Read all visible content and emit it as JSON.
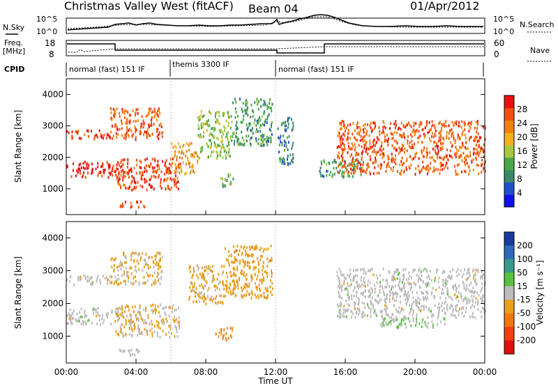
{
  "header": {
    "title": "Christmas Valley West (fitACF)",
    "beam": "Beam 04",
    "date": "01/Apr/2012"
  },
  "noise_panel": {
    "left_label": "N.Sky",
    "left_ticks": [
      "10^5",
      "10^0"
    ],
    "right_label": "N.Search",
    "right_ticks": [
      "10^5",
      "10^0"
    ]
  },
  "freq_panel": {
    "left_label_line1": "Freq.",
    "left_label_line2": "[MHz]",
    "left_ticks": [
      "18",
      "8"
    ],
    "right_label": "Nave",
    "right_ticks": [
      "60",
      "0"
    ]
  },
  "cpid": {
    "label": "CPID",
    "segments": [
      {
        "label": "normal (fast) 151 IF",
        "start_h": 0,
        "end_h": 6
      },
      {
        "label": "themis 3300 IF",
        "start_h": 6,
        "end_h": 12
      },
      {
        "label": "normal (fast) 151 IF",
        "start_h": 12,
        "end_h": 24
      }
    ]
  },
  "range_axis": {
    "label": "Slant Range [km]",
    "ticks": [
      "1000",
      "2000",
      "3000",
      "4000"
    ],
    "range_km": [
      180,
      4500
    ]
  },
  "time_axis": {
    "label": "Time UT",
    "ticks": [
      "00:00",
      "04:00",
      "08:00",
      "12:00",
      "16:00",
      "20:00",
      "00:00"
    ]
  },
  "power_colorbar": {
    "label": "Power [dB]",
    "ticks": [
      "4",
      "8",
      "12",
      "16",
      "20",
      "24",
      "28"
    ],
    "colors": [
      "#1010e6",
      "#2050c8",
      "#3a8a6a",
      "#4aa84a",
      "#a8c840",
      "#f0b020",
      "#f08010",
      "#f05010",
      "#e81010"
    ]
  },
  "velocity_colorbar": {
    "label": "Velocity [m s⁻¹]",
    "ticks": [
      "200",
      "100",
      "50",
      "15",
      "-15",
      "-50",
      "-100",
      "-200"
    ],
    "colors": [
      "#1a3aa0",
      "#2f6ab8",
      "#3a9a8a",
      "#5ac040",
      "#bcbcbc",
      "#e8a020",
      "#f07810",
      "#f04010",
      "#e01010"
    ]
  },
  "chart_data": {
    "type": "heatmap",
    "title": "Christmas Valley West (fitACF)",
    "subtitle": "Beam 04 — 01/Apr/2012",
    "xlabel": "Time UT",
    "ylabel": "Slant Range [km]",
    "xlim_hours": [
      0,
      24
    ],
    "ylim_km": [
      180,
      4500
    ],
    "panels": [
      {
        "name": "Power [dB]",
        "scale": [
          0,
          30
        ],
        "features": [
          {
            "t": [
              0.0,
              3.0
            ],
            "r": [
              1400,
              1900
            ],
            "value": 28
          },
          {
            "t": [
              0.0,
              2.5
            ],
            "r": [
              2600,
              2900
            ],
            "value": 26
          },
          {
            "t": [
              2.5,
              5.5
            ],
            "r": [
              2600,
              3600
            ],
            "value": 24
          },
          {
            "t": [
              2.8,
              6.5
            ],
            "r": [
              1000,
              2000
            ],
            "value": 26
          },
          {
            "t": [
              6.0,
              7.5
            ],
            "r": [
              1500,
              2500
            ],
            "value": 20
          },
          {
            "t": [
              3.0,
              4.5
            ],
            "r": [
              450,
              650
            ],
            "value": 26
          },
          {
            "t": [
              7.5,
              9.5
            ],
            "r": [
              2000,
              3500
            ],
            "value": 14
          },
          {
            "t": [
              9.5,
              11.8
            ],
            "r": [
              2400,
              3900
            ],
            "value": 10
          },
          {
            "t": [
              8.8,
              9.6
            ],
            "r": [
              1100,
              1500
            ],
            "value": 12
          },
          {
            "t": [
              12.1,
              13.0
            ],
            "r": [
              1800,
              3300
            ],
            "value": 8
          },
          {
            "t": [
              14.5,
              17.0
            ],
            "r": [
              1400,
              2000
            ],
            "value": 10
          },
          {
            "t": [
              15.5,
              24.0
            ],
            "r": [
              1500,
              3200
            ],
            "value": 24
          }
        ]
      },
      {
        "name": "Velocity [m s-1]",
        "scale": [
          -250,
          250
        ],
        "features": [
          {
            "t": [
              0.0,
              3.0
            ],
            "r": [
              1400,
              1900
            ],
            "value": 0
          },
          {
            "t": [
              0.0,
              2.5
            ],
            "r": [
              2600,
              2900
            ],
            "value": 0
          },
          {
            "t": [
              2.5,
              5.5
            ],
            "r": [
              2600,
              3600
            ],
            "value": -40
          },
          {
            "t": [
              2.8,
              6.5
            ],
            "r": [
              1000,
              2000
            ],
            "value": -30
          },
          {
            "t": [
              3.0,
              4.5
            ],
            "r": [
              450,
              650
            ],
            "value": 0
          },
          {
            "t": [
              7.0,
              9.0
            ],
            "r": [
              2000,
              3200
            ],
            "value": -40
          },
          {
            "t": [
              9.0,
              11.8
            ],
            "r": [
              2200,
              3800
            ],
            "value": -60
          },
          {
            "t": [
              8.5,
              9.5
            ],
            "r": [
              900,
              1300
            ],
            "value": -80
          },
          {
            "t": [
              15.5,
              24.0
            ],
            "r": [
              1600,
              3100
            ],
            "value": 0
          },
          {
            "t": [
              18.0,
              22.0
            ],
            "r": [
              1300,
              1600
            ],
            "value": 20
          }
        ]
      }
    ]
  }
}
